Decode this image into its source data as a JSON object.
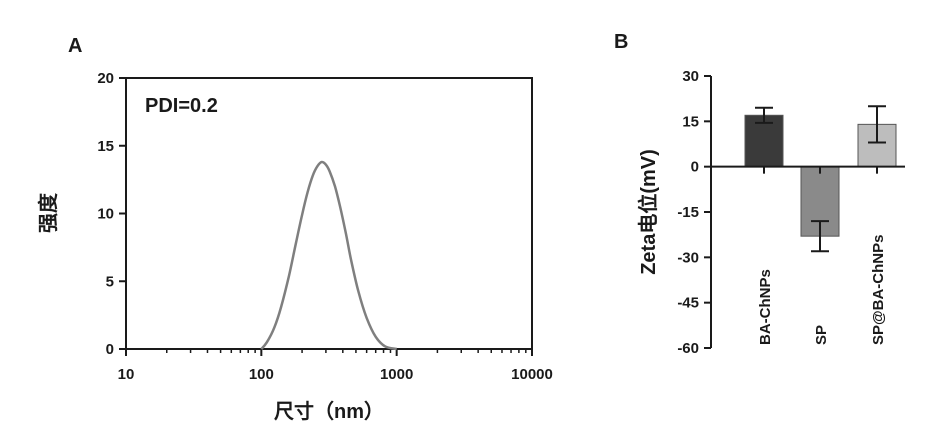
{
  "chart_data": [
    {
      "panel": "A",
      "type": "line",
      "xlabel": "尺寸（nm）",
      "ylabel": "强度",
      "xscale": "log",
      "xlim": [
        10,
        10000
      ],
      "ylim": [
        0,
        20
      ],
      "x_ticks": [
        "10",
        "100",
        "1000",
        "10000"
      ],
      "y_ticks": [
        "0",
        "5",
        "10",
        "15",
        "20"
      ],
      "annotation": "PDI=0.2",
      "grid": false,
      "color": "#7f7f7f",
      "series": [
        {
          "x": [
            100,
            110,
            125,
            140,
            160,
            180,
            200,
            220,
            240,
            260,
            280,
            300,
            320,
            350,
            380,
            420,
            460,
            520,
            600,
            700,
            820,
            1000
          ],
          "y": [
            0,
            0.5,
            1.6,
            3.1,
            5.4,
            7.8,
            9.9,
            11.6,
            12.8,
            13.5,
            13.8,
            13.6,
            13.1,
            12.0,
            10.6,
            8.6,
            6.6,
            4.3,
            2.3,
            0.9,
            0.2,
            0
          ]
        }
      ]
    },
    {
      "panel": "B",
      "type": "bar",
      "ylabel": "Zeta电位(mV)",
      "ylim": [
        -60,
        30
      ],
      "y_ticks": [
        "30",
        "15",
        "0",
        "-15",
        "-30",
        "-45",
        "-60"
      ],
      "categories": [
        "BA-ChNPs",
        "SP",
        "SP@BA-ChNPs"
      ],
      "values": [
        17,
        -23,
        14
      ],
      "errors": [
        2.5,
        5,
        6
      ],
      "colors": [
        "#3a3a3a",
        "#8a8a8a",
        "#bdbdbd"
      ],
      "grid": false
    }
  ]
}
